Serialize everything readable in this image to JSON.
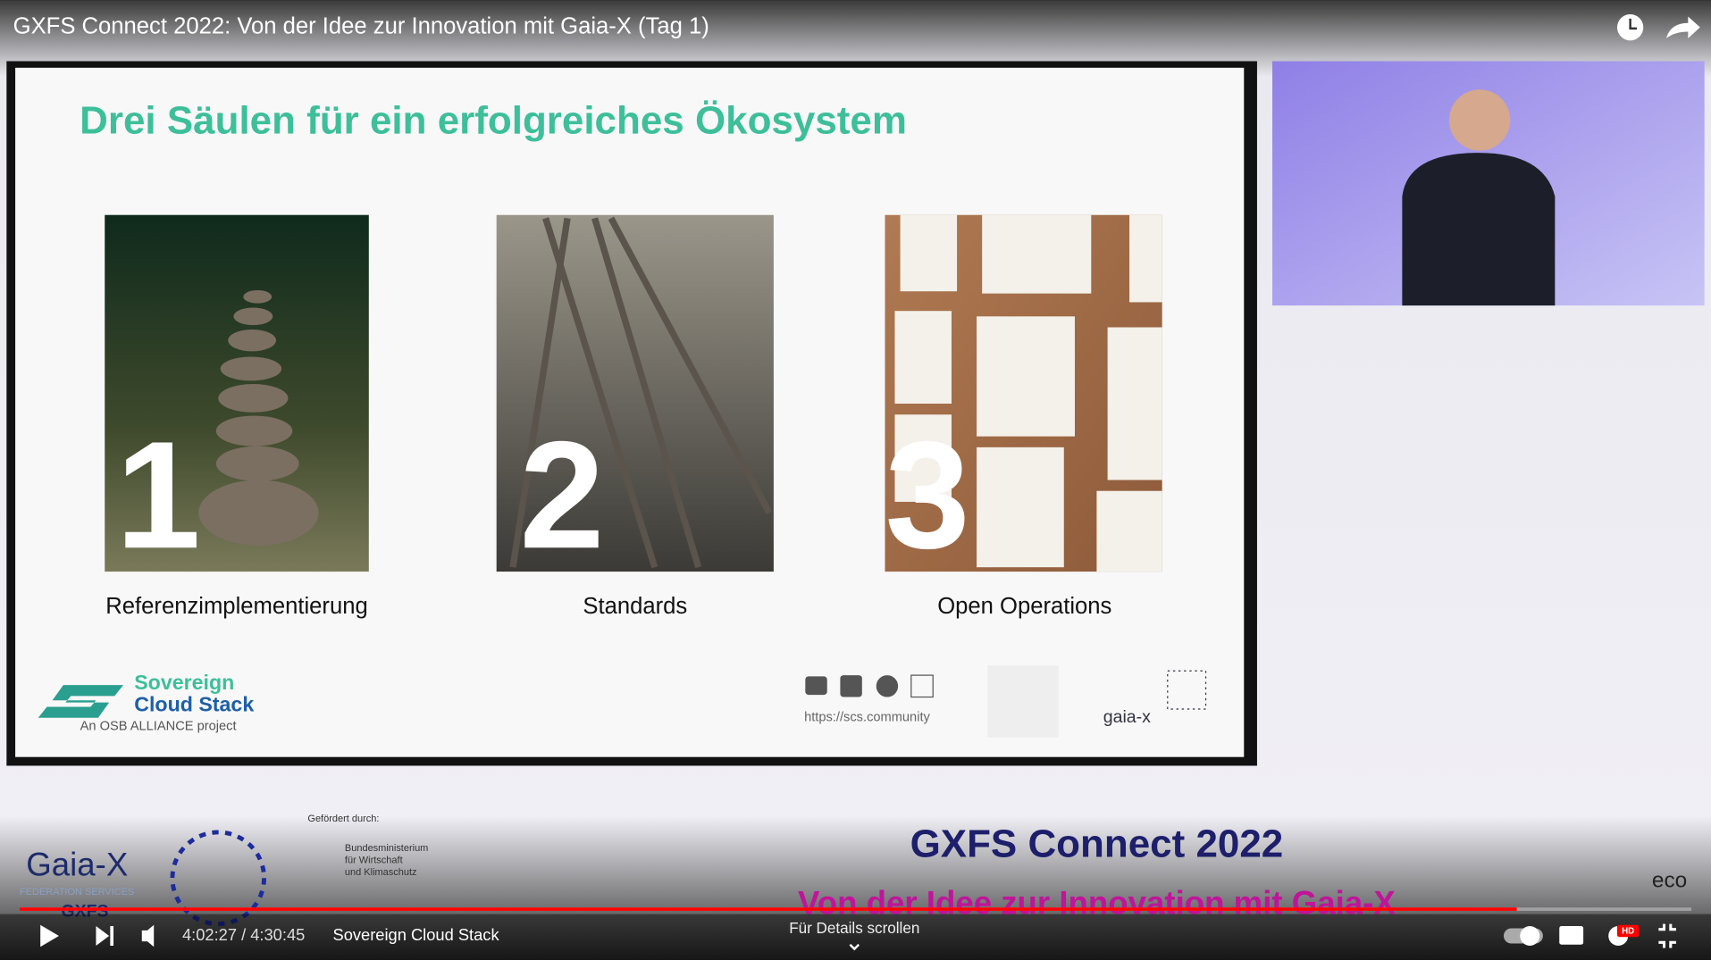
{
  "player": {
    "title": "GXFS Connect 2022: Von der Idee zur Innovation mit Gaia-X (Tag 1)",
    "time": "4:02:27 / 4:30:45",
    "chapter": "Sovereign Cloud Stack",
    "hint": "Für Details scrollen",
    "hd": "HD"
  },
  "slide": {
    "heading": "Drei Säulen für ein erfolgreiches Ökosystem",
    "pillars": [
      {
        "number": "1",
        "caption": "Referenzimplementierung"
      },
      {
        "number": "2",
        "caption": "Standards"
      },
      {
        "number": "3",
        "caption": "Open Operations"
      }
    ],
    "logo": {
      "line1": "Sovereign",
      "line2": "Cloud Stack",
      "tagline": "An OSB ALLIANCE project"
    },
    "url": "https://scs.community",
    "partner": "gaia-x"
  },
  "banner": {
    "brand": "Gaia-X",
    "brand_sub": "FEDERATION SERVICES",
    "brand_short": "GXFS",
    "funded": "Gefördert durch:",
    "ministry": [
      "Bundesministerium",
      "für Wirtschaft",
      "und Klimaschutz"
    ],
    "event": "GXFS Connect 2022",
    "motto": "Von der Idee zur Innovation mit Gaia-X",
    "host": "eco"
  }
}
